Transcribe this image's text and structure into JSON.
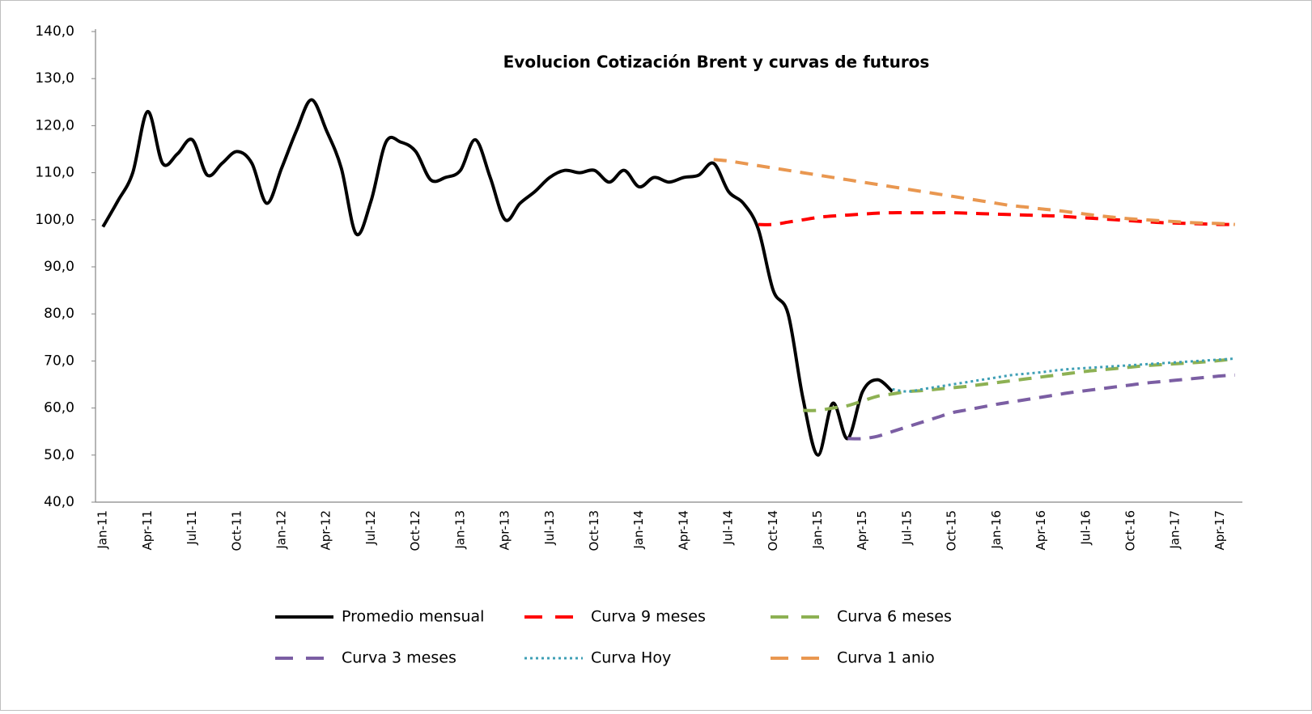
{
  "chart_data": {
    "type": "line",
    "title": "Evolucion Cotización Brent y curvas de futuros",
    "categories": [
      "Jan-11",
      null,
      null,
      "Apr-11",
      null,
      null,
      "Jul-11",
      null,
      null,
      "Oct-11",
      null,
      null,
      "Jan-12",
      null,
      null,
      "Apr-12",
      null,
      null,
      "Jul-12",
      null,
      null,
      "Oct-12",
      null,
      null,
      "Jan-13",
      null,
      null,
      "Apr-13",
      null,
      null,
      "Jul-13",
      null,
      null,
      "Oct-13",
      null,
      null,
      "Jan-14",
      null,
      null,
      "Apr-14",
      null,
      null,
      "Jul-14",
      null,
      null,
      "Oct-14",
      null,
      null,
      "Jan-15",
      null,
      null,
      "Apr-15",
      null,
      null,
      "Jul-15",
      null,
      null,
      "Oct-15",
      null,
      null,
      "Jan-16",
      null,
      null,
      "Apr-16",
      null,
      null,
      "Jul-16",
      null,
      null,
      "Oct-16",
      null,
      null,
      "Jan-17",
      null,
      null,
      "Apr-17",
      null
    ],
    "ylim": [
      40,
      140
    ],
    "yticks": [
      {
        "value": 40,
        "label": "40,0"
      },
      {
        "value": 50,
        "label": "50,0"
      },
      {
        "value": 60,
        "label": "60,0"
      },
      {
        "value": 70,
        "label": "70,0"
      },
      {
        "value": 80,
        "label": "80,0"
      },
      {
        "value": 90,
        "label": "90,0"
      },
      {
        "value": 100,
        "label": "100,0"
      },
      {
        "value": 110,
        "label": "110,0"
      },
      {
        "value": 120,
        "label": "120,0"
      },
      {
        "value": 130,
        "label": "130,0"
      },
      {
        "value": 140,
        "label": "140,0"
      }
    ],
    "grid": false,
    "legend": "bottom",
    "series": [
      {
        "name": "Promedio mensual",
        "color": "#000000",
        "style": "solid",
        "values": [
          98.5,
          104,
          110,
          123,
          112,
          114,
          117,
          109.5,
          112,
          114.5,
          112,
          103.5,
          111,
          119,
          125.5,
          119,
          111,
          97,
          104,
          116.5,
          116.5,
          114.5,
          108.5,
          109,
          110.5,
          117,
          109,
          100,
          103.5,
          106,
          109,
          110.5,
          110,
          110.5,
          108,
          110.5,
          107,
          109,
          108,
          109,
          109.5,
          112,
          106,
          103.5,
          98,
          85,
          80,
          62,
          50,
          61,
          53.5,
          63.5,
          66,
          63.5,
          null,
          null,
          null,
          null,
          null,
          null,
          null,
          null,
          null,
          null,
          null,
          null,
          null,
          null,
          null,
          null,
          null,
          null,
          null,
          null,
          null,
          null,
          null
        ]
      },
      {
        "name": "Curva 9 meses",
        "color": "#ff0000",
        "style": "dashed",
        "values": [
          null,
          null,
          null,
          null,
          null,
          null,
          null,
          null,
          null,
          null,
          null,
          null,
          null,
          null,
          null,
          null,
          null,
          null,
          null,
          null,
          null,
          null,
          null,
          null,
          null,
          null,
          null,
          null,
          null,
          null,
          null,
          null,
          null,
          null,
          null,
          null,
          null,
          null,
          null,
          null,
          null,
          null,
          null,
          null,
          99,
          99,
          99.5,
          100,
          100.5,
          100.8,
          101,
          101.2,
          101.4,
          101.5,
          101.5,
          101.5,
          101.5,
          101.5,
          101.4,
          101.3,
          101.2,
          101.1,
          101,
          100.9,
          100.8,
          100.6,
          100.4,
          100.2,
          100,
          99.8,
          99.6,
          99.4,
          99.3,
          99.2,
          99.1,
          99,
          99
        ]
      },
      {
        "name": "Curva 6 meses",
        "color": "#8db153",
        "style": "dashed",
        "values": [
          null,
          null,
          null,
          null,
          null,
          null,
          null,
          null,
          null,
          null,
          null,
          null,
          null,
          null,
          null,
          null,
          null,
          null,
          null,
          null,
          null,
          null,
          null,
          null,
          null,
          null,
          null,
          null,
          null,
          null,
          null,
          null,
          null,
          null,
          null,
          null,
          null,
          null,
          null,
          null,
          null,
          null,
          null,
          null,
          null,
          null,
          null,
          59.5,
          59.5,
          60,
          60.5,
          61.5,
          62.5,
          63,
          63.5,
          63.7,
          64,
          64.3,
          64.6,
          65,
          65.4,
          65.8,
          66.2,
          66.6,
          67,
          67.4,
          67.8,
          68.1,
          68.4,
          68.7,
          69,
          69.2,
          69.4,
          69.6,
          69.8,
          70.1,
          70.5
        ]
      },
      {
        "name": "Curva 3 meses",
        "color": "#7b5ea3",
        "style": "dashed",
        "values": [
          null,
          null,
          null,
          null,
          null,
          null,
          null,
          null,
          null,
          null,
          null,
          null,
          null,
          null,
          null,
          null,
          null,
          null,
          null,
          null,
          null,
          null,
          null,
          null,
          null,
          null,
          null,
          null,
          null,
          null,
          null,
          null,
          null,
          null,
          null,
          null,
          null,
          null,
          null,
          null,
          null,
          null,
          null,
          null,
          null,
          null,
          null,
          null,
          null,
          null,
          53.5,
          53.5,
          54,
          55,
          56,
          57,
          58,
          59,
          59.6,
          60.2,
          60.8,
          61.3,
          61.8,
          62.3,
          62.8,
          63.3,
          63.7,
          64.1,
          64.5,
          64.9,
          65.3,
          65.6,
          65.9,
          66.2,
          66.5,
          66.8,
          67
        ]
      },
      {
        "name": "Curva Hoy",
        "color": "#3e9fb5",
        "style": "dotted",
        "values": [
          null,
          null,
          null,
          null,
          null,
          null,
          null,
          null,
          null,
          null,
          null,
          null,
          null,
          null,
          null,
          null,
          null,
          null,
          null,
          null,
          null,
          null,
          null,
          null,
          null,
          null,
          null,
          null,
          null,
          null,
          null,
          null,
          null,
          null,
          null,
          null,
          null,
          null,
          null,
          null,
          null,
          null,
          null,
          null,
          null,
          null,
          null,
          null,
          null,
          null,
          null,
          null,
          null,
          64,
          63.5,
          64,
          64.5,
          65,
          65.5,
          66,
          66.5,
          67,
          67.3,
          67.6,
          68,
          68.3,
          68.5,
          68.7,
          68.9,
          69.1,
          69.3,
          69.5,
          69.7,
          69.9,
          70.1,
          70.3,
          70.5
        ]
      },
      {
        "name": "Curva 1 anio",
        "color": "#e99750",
        "style": "dashed",
        "values": [
          null,
          null,
          null,
          null,
          null,
          null,
          null,
          null,
          null,
          null,
          null,
          null,
          null,
          null,
          null,
          null,
          null,
          null,
          null,
          null,
          null,
          null,
          null,
          null,
          null,
          null,
          null,
          null,
          null,
          null,
          null,
          null,
          null,
          null,
          null,
          null,
          null,
          null,
          null,
          null,
          null,
          112.8,
          112.5,
          112,
          111.5,
          111,
          110.5,
          110,
          109.5,
          109,
          108.5,
          108,
          107.5,
          107,
          106.5,
          106,
          105.5,
          105,
          104.5,
          104,
          103.5,
          103,
          102.7,
          102.3,
          102,
          101.6,
          101.2,
          100.8,
          100.5,
          100.2,
          100,
          99.8,
          99.6,
          99.4,
          99.3,
          99.2,
          99
        ]
      }
    ]
  }
}
